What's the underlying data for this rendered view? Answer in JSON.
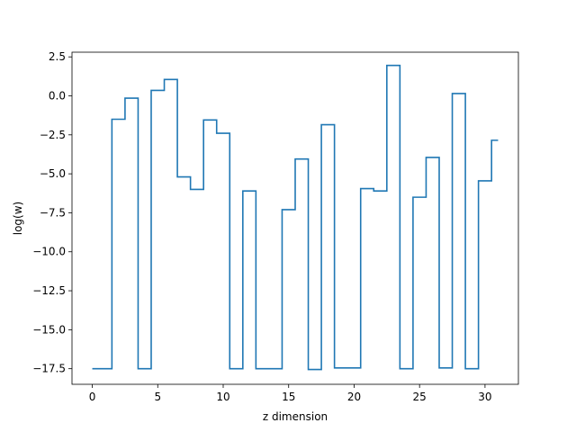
{
  "chart_data": {
    "type": "line",
    "drawstyle": "steps-mid",
    "title": "",
    "xlabel": "z dimension",
    "ylabel": "log(w)",
    "xlim": [
      -1.55,
      32.55
    ],
    "ylim": [
      -18.5,
      2.8
    ],
    "xticks": [
      0,
      5,
      10,
      15,
      20,
      25,
      30
    ],
    "xtick_labels": [
      "0",
      "5",
      "10",
      "15",
      "20",
      "25",
      "30"
    ],
    "yticks": [
      2.5,
      0.0,
      -2.5,
      -5.0,
      -7.5,
      -10.0,
      -12.5,
      -15.0,
      -17.5
    ],
    "ytick_labels": [
      "2.5",
      "0.0",
      "−2.5",
      "−5.0",
      "−7.5",
      "−10.0",
      "−12.5",
      "−15.0",
      "−17.5"
    ],
    "grid": false,
    "legend": "none",
    "series": [
      {
        "color": "#1f77b4",
        "x": [
          0,
          1,
          2,
          3,
          4,
          5,
          6,
          7,
          8,
          9,
          10,
          11,
          12,
          13,
          14,
          15,
          16,
          17,
          18,
          19,
          20,
          21,
          22,
          23,
          24,
          25,
          26,
          27,
          28,
          29,
          30,
          31
        ],
        "y": [
          -17.5,
          -17.5,
          -1.5,
          -0.15,
          -17.5,
          0.35,
          1.05,
          -5.2,
          -6.0,
          -1.55,
          -2.4,
          -17.5,
          -6.1,
          -17.5,
          -17.5,
          -7.3,
          -4.05,
          -17.55,
          -1.85,
          -17.45,
          -17.45,
          -5.95,
          -6.1,
          1.95,
          -17.5,
          -6.5,
          -3.95,
          -17.45,
          0.15,
          -17.5,
          -5.45,
          -2.85
        ]
      }
    ]
  }
}
